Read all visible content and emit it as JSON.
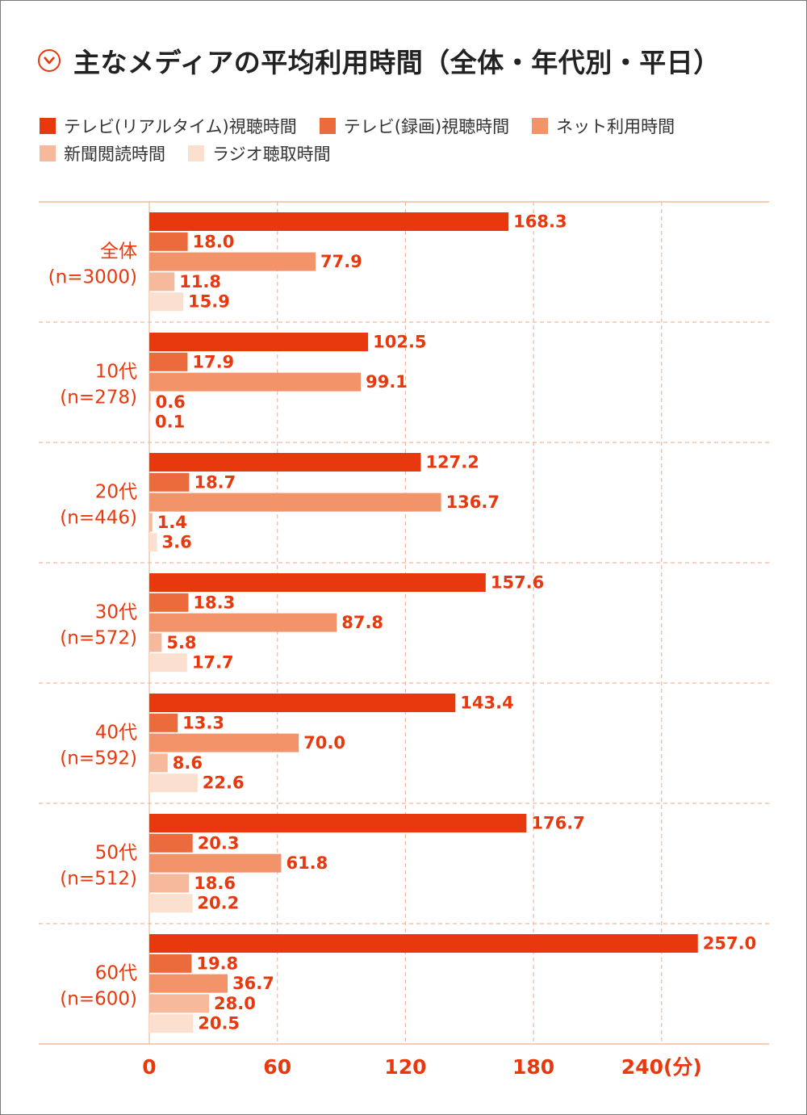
{
  "title": "主なメディアの平均利用時間（全体・年代別・平日）",
  "title_icon": "chevron-down-circle-icon",
  "colors": {
    "accent": "#e8380d",
    "series": [
      "#e8380d",
      "#ec6b3c",
      "#f2936a",
      "#f6b99c",
      "#fbdfcf"
    ],
    "grid": "#f3b89a"
  },
  "chart_data": {
    "type": "bar",
    "orientation": "horizontal",
    "title": "主なメディアの平均利用時間（全体・年代別・平日）",
    "xlabel": "",
    "ylabel": "",
    "unit": "(分)",
    "xlim": [
      0,
      290
    ],
    "xticks": [
      0,
      60,
      120,
      180,
      240
    ],
    "xtick_labels": [
      "0",
      "60",
      "120",
      "180",
      "240(分)"
    ],
    "grid": true,
    "legend_position": "top",
    "categories": [
      {
        "name": "全体",
        "n": "(n=3000)"
      },
      {
        "name": "10代",
        "n": "(n=278)"
      },
      {
        "name": "20代",
        "n": "(n=446)"
      },
      {
        "name": "30代",
        "n": "(n=572)"
      },
      {
        "name": "40代",
        "n": "(n=592)"
      },
      {
        "name": "50代",
        "n": "(n=512)"
      },
      {
        "name": "60代",
        "n": "(n=600)"
      }
    ],
    "series": [
      {
        "name": "テレビ(リアルタイム)視聴時間",
        "values": [
          168.3,
          102.5,
          127.2,
          157.6,
          143.4,
          176.7,
          257.0
        ]
      },
      {
        "name": "テレビ(録画)視聴時間",
        "values": [
          18.0,
          17.9,
          18.7,
          18.3,
          13.3,
          20.3,
          19.8
        ]
      },
      {
        "name": "ネット利用時間",
        "values": [
          77.9,
          99.1,
          136.7,
          87.8,
          70.0,
          61.8,
          36.7
        ]
      },
      {
        "name": "新聞閲読時間",
        "values": [
          11.8,
          0.6,
          1.4,
          5.8,
          8.6,
          18.6,
          28.0
        ]
      },
      {
        "name": "ラジオ聴取時間",
        "values": [
          15.9,
          0.1,
          3.6,
          17.7,
          22.6,
          20.2,
          20.5
        ]
      }
    ]
  }
}
